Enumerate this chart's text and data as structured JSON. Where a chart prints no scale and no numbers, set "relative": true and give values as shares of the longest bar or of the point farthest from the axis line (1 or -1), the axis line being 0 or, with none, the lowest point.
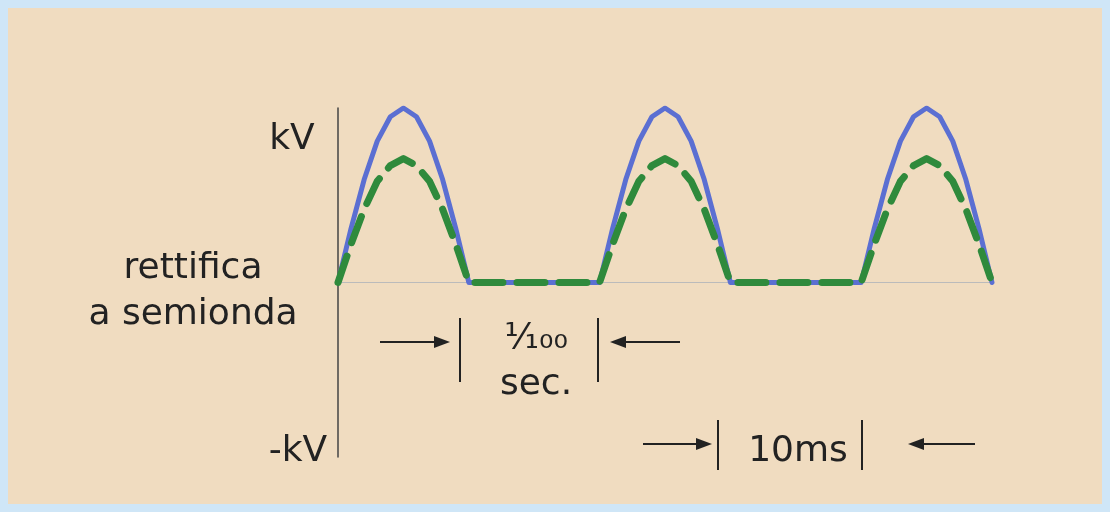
{
  "chart_data": {
    "type": "line",
    "relative": true,
    "categories": [
      null,
      null,
      null,
      null,
      null,
      null,
      null,
      null,
      null,
      null,
      null,
      null,
      null,
      null,
      null,
      null,
      null,
      null,
      null,
      null,
      null,
      null,
      null,
      null,
      null,
      null,
      null,
      null,
      null,
      null,
      null,
      null,
      null,
      null,
      null,
      null,
      null,
      null,
      null,
      null,
      null,
      null,
      null,
      null,
      null,
      null,
      null,
      null,
      null,
      null,
      null
    ],
    "series": [
      {
        "color": "#5b6fd2",
        "line_style": "solid",
        "values": [
          0,
          0.31,
          0.59,
          0.81,
          0.95,
          1,
          0.95,
          0.81,
          0.59,
          0.31,
          0,
          0,
          0,
          0,
          0,
          0,
          0,
          0,
          0,
          0,
          0,
          0.31,
          0.59,
          0.81,
          0.95,
          1,
          0.95,
          0.81,
          0.59,
          0.31,
          0,
          0,
          0,
          0,
          0,
          0,
          0,
          0,
          0,
          0,
          0,
          0.31,
          0.59,
          0.81,
          0.95,
          1,
          0.95,
          0.81,
          0.59,
          0.31,
          0
        ]
      },
      {
        "color": "#2f8a3c",
        "line_style": "dashed",
        "values": [
          0,
          0.22,
          0.42,
          0.58,
          0.67,
          0.71,
          0.67,
          0.58,
          0.42,
          0.22,
          0,
          0,
          0,
          0,
          0,
          0,
          0,
          0,
          0,
          0,
          0,
          0.22,
          0.42,
          0.58,
          0.67,
          0.71,
          0.67,
          0.58,
          0.42,
          0.22,
          0,
          0,
          0,
          0,
          0,
          0,
          0,
          0,
          0,
          0,
          0,
          0.22,
          0.42,
          0.58,
          0.67,
          0.71,
          0.67,
          0.58,
          0.42,
          0.22,
          0
        ]
      }
    ],
    "annotations": [
      "kV",
      "-kV",
      "rettifica\na semionda",
      "¹⁄₁₀₀\nsec.",
      "10ms"
    ]
  }
}
